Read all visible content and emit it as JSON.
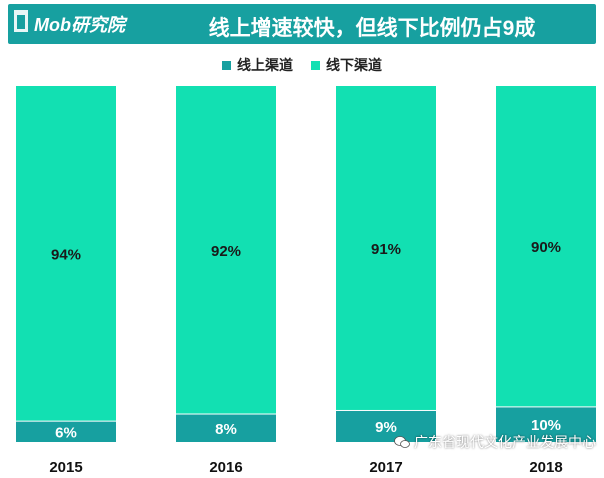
{
  "header": {
    "logo": "Mob研究院",
    "title": "线上增速较快，但线下比例仍占9成"
  },
  "colors": {
    "header_bg": "#17a0a0",
    "online": "#17a0a0",
    "offline": "#12e0b2"
  },
  "watermark": {
    "text": "广东省现代文化产业发展中心",
    "icon": "wechat-icon"
  },
  "chart_data": {
    "type": "bar",
    "stacked": true,
    "percent": true,
    "categories": [
      "2015",
      "2016",
      "2017",
      "2018"
    ],
    "series": [
      {
        "name": "线上渠道",
        "values": [
          6,
          8,
          9,
          10
        ],
        "labels": [
          "6%",
          "8%",
          "9%",
          "10%"
        ]
      },
      {
        "name": "线下渠道",
        "values": [
          94,
          92,
          91,
          90
        ],
        "labels": [
          "94%",
          "92%",
          "91%",
          "90%"
        ]
      }
    ],
    "legend_position": "top-center",
    "grid": false
  }
}
